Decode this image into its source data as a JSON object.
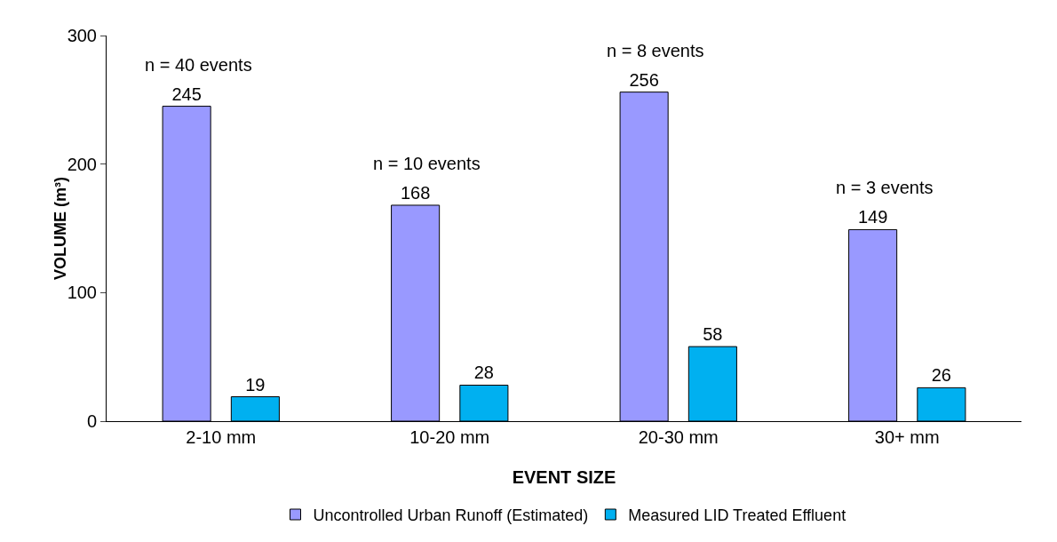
{
  "chart_data": {
    "type": "bar",
    "xlabel": "EVENT SIZE",
    "ylabel": "VOLUME (m³)",
    "categories": [
      "2-10 mm",
      "10-20 mm",
      "20-30 mm",
      "30+ mm"
    ],
    "series": [
      {
        "name": "Uncontrolled Urban Runoff (Estimated)",
        "color": "#9999ff",
        "values": [
          245,
          168,
          256,
          149
        ]
      },
      {
        "name": "Measured LID Treated Effluent",
        "color": "#00b0f0",
        "values": [
          19,
          28,
          58,
          26
        ]
      }
    ],
    "ylim": [
      0,
      300
    ],
    "yticks": [
      0,
      100,
      200,
      300
    ],
    "grid": false,
    "legend": "bottom",
    "data_labels": true,
    "annotations": [
      "n = 40 events",
      "n = 10 events",
      "n = 8 events",
      "n = 3 events"
    ]
  }
}
